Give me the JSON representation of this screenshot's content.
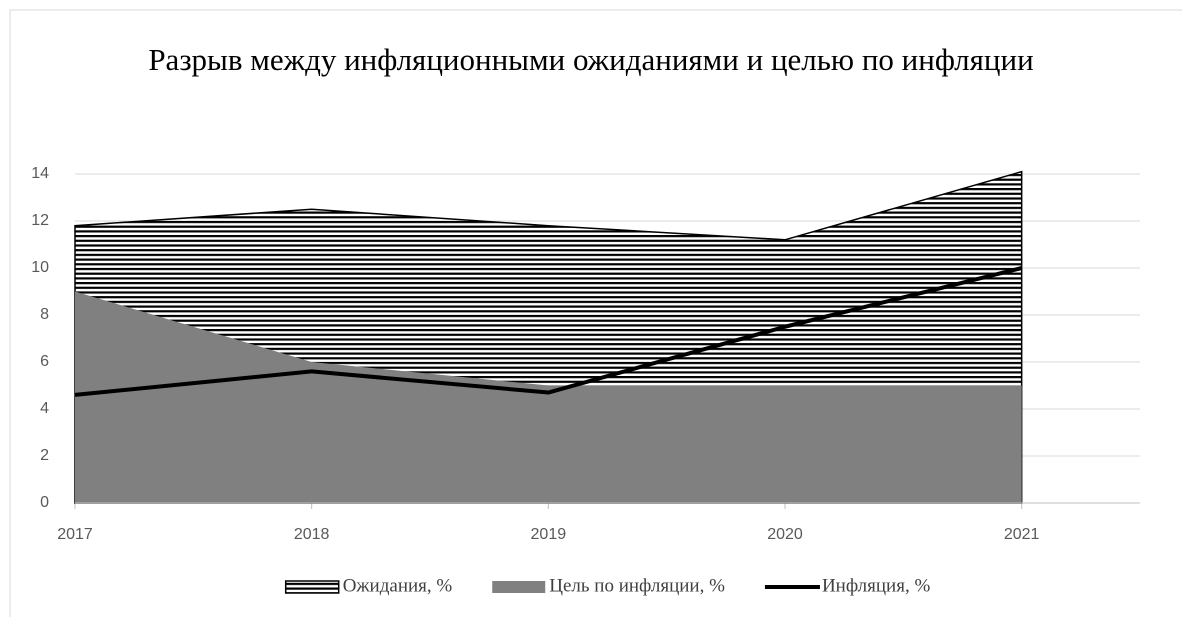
{
  "chart_data": {
    "type": "area",
    "title": "Разрыв между инфляционными ожиданиями и целью по инфляции",
    "x": [
      2017,
      2018,
      2019,
      2020,
      2021
    ],
    "xlim": [
      2017,
      2021.5
    ],
    "xticks": [
      2017,
      2018,
      2019,
      2020,
      2021
    ],
    "ylim": [
      0,
      14
    ],
    "yticks": [
      0,
      2,
      4,
      6,
      8,
      10,
      12,
      14
    ],
    "grid": true,
    "legend": "bottom",
    "series": [
      {
        "name": "Ожидания, %",
        "type": "area",
        "pattern": "horizontal-stripes",
        "color": "#000000",
        "values": [
          11.8,
          12.5,
          11.8,
          11.2,
          14.1
        ]
      },
      {
        "name": "Цель по инфляции, %",
        "type": "area",
        "color": "#808080",
        "values": [
          9,
          6,
          5,
          5,
          5
        ]
      },
      {
        "name": "Инфляция, %",
        "type": "line",
        "color": "#000000",
        "values": [
          4.6,
          5.6,
          4.7,
          7.5,
          10.0
        ]
      }
    ]
  }
}
